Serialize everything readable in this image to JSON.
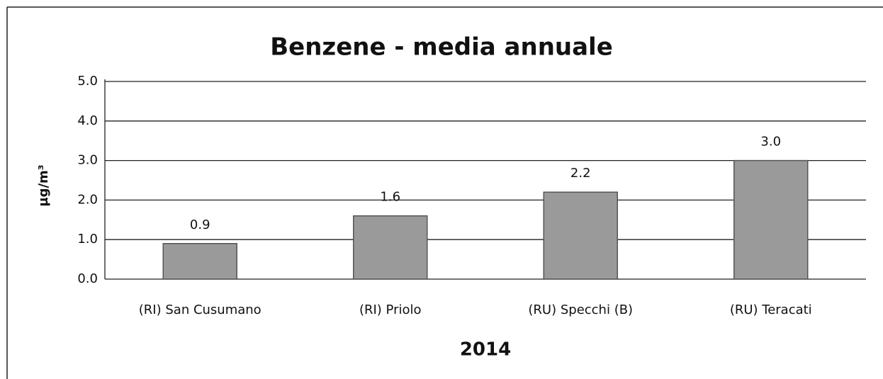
{
  "chart_data": {
    "type": "bar",
    "title": "Benzene - media annuale",
    "ylabel": "µg/m³",
    "xlabel": "2014",
    "categories": [
      "(RI) San Cusumano",
      "(RI) Priolo",
      "(RU) Specchi (B)",
      "(RU) Teracati"
    ],
    "values": [
      0.9,
      1.6,
      2.2,
      3.0
    ],
    "value_labels": [
      "0.9",
      "1.6",
      "2.2",
      "3.0"
    ],
    "color": "#9a9a9a",
    "ylim": [
      0,
      5
    ],
    "yticks": [
      {
        "value": 0,
        "label": "0.0"
      },
      {
        "value": 1,
        "label": "1.0"
      },
      {
        "value": 2,
        "label": "2.0"
      },
      {
        "value": 3,
        "label": "3.0"
      },
      {
        "value": 4,
        "label": "4.0"
      },
      {
        "value": 5,
        "label": "5.0"
      }
    ],
    "grid": true
  }
}
